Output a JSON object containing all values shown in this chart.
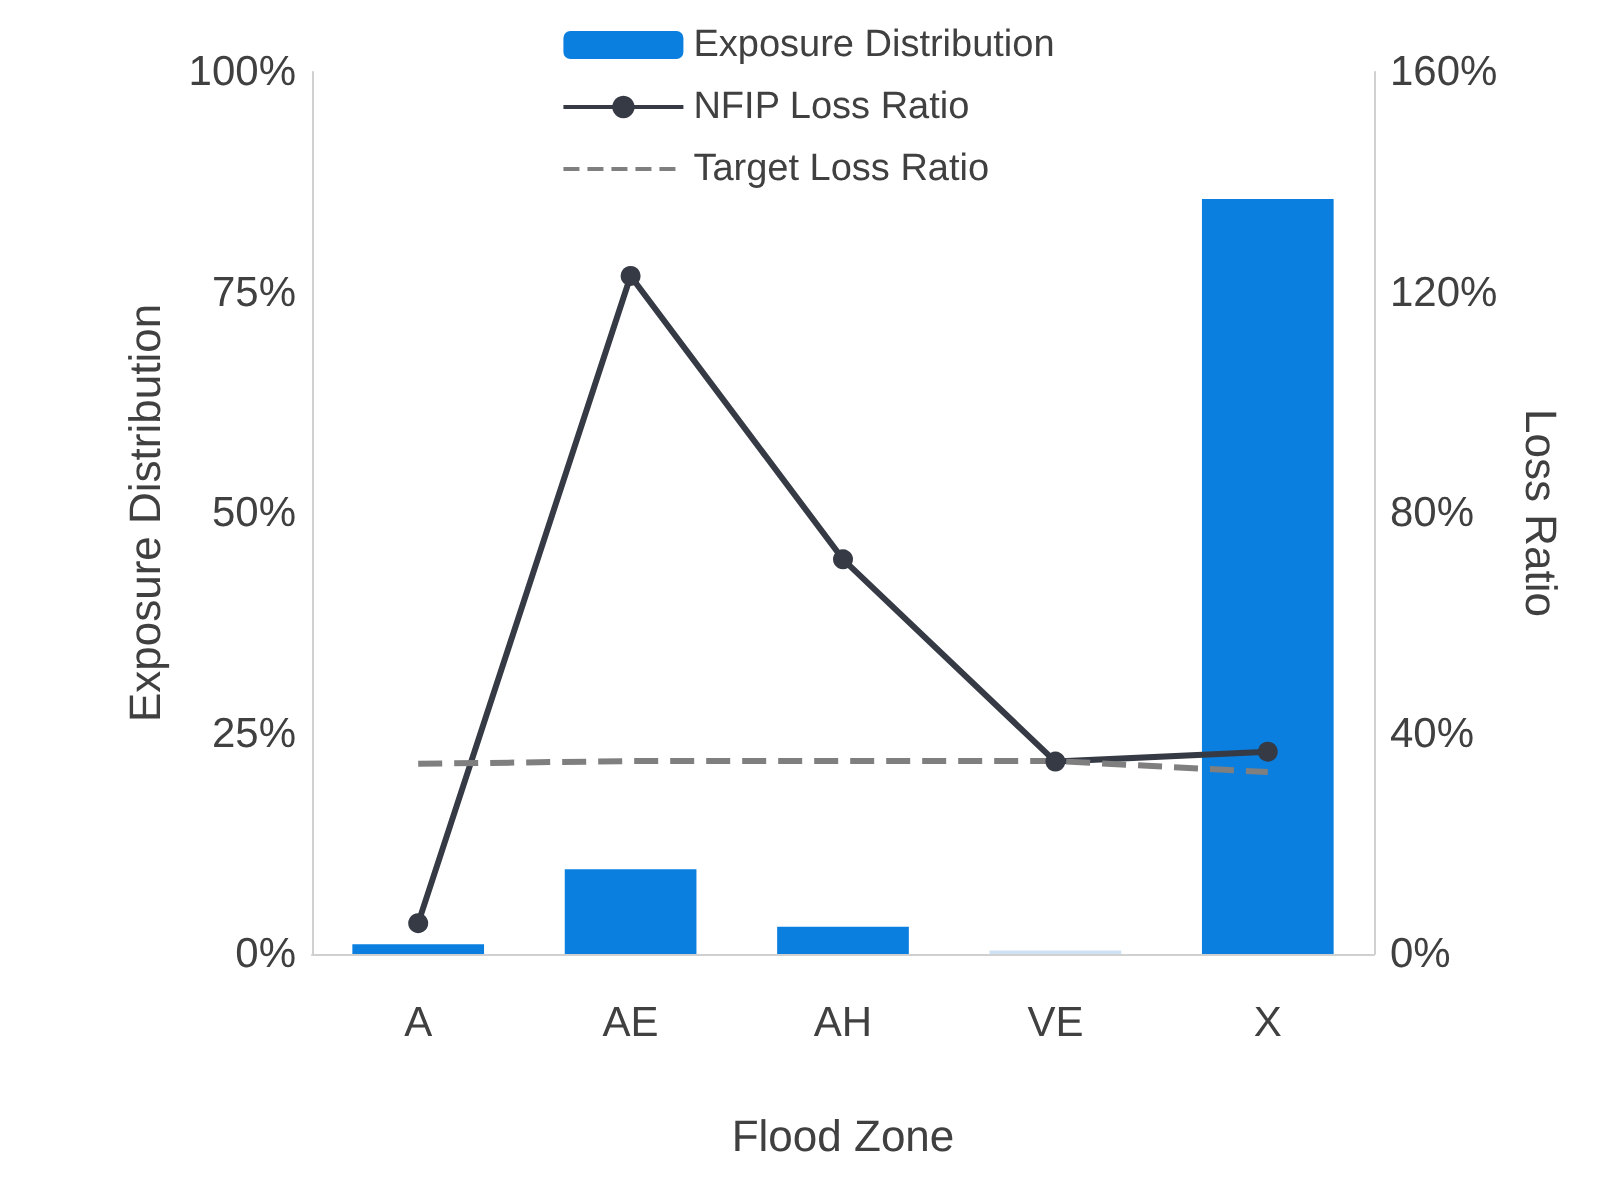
{
  "chart_data": {
    "type": "bar",
    "xlabel": "Flood Zone",
    "ylabel": "Exposure Distribution",
    "y2label": "Loss Ratio",
    "categories": [
      "A",
      "AE",
      "AH",
      "VE",
      "X"
    ],
    "series": [
      {
        "name": "Exposure Distribution",
        "color": "#0a7fe0",
        "colors": [
          "#0a7fe0",
          "#0a7fe0",
          "#0a7fe0",
          "#cfe2f3",
          "#0a7fe0"
        ],
        "values": [
          1.1,
          9.6,
          3.1,
          0.4,
          85.6
        ]
      },
      {
        "name": "NFIP Loss Ratio",
        "type": "line",
        "axis": "y2",
        "color": "#353a45",
        "marker": "circle",
        "line_style": "solid",
        "values": [
          5.6,
          123,
          71.6,
          34.9,
          36.7
        ]
      },
      {
        "name": "Target Loss Ratio",
        "type": "line",
        "axis": "y2",
        "color": "#7f7f7f",
        "marker": "none",
        "line_style": "dashed",
        "values": [
          34.5,
          35,
          35,
          35,
          33
        ]
      }
    ],
    "ylim": [
      0,
      100
    ],
    "yticks": [
      {
        "value": 0,
        "label": "0%"
      },
      {
        "value": 25,
        "label": "25%"
      },
      {
        "value": 50,
        "label": "50%"
      },
      {
        "value": 75,
        "label": "75%"
      },
      {
        "value": 100,
        "label": "100%"
      }
    ],
    "y2lim": [
      0,
      160
    ],
    "y2ticks": [
      {
        "value": 0,
        "label": "0%"
      },
      {
        "value": 40,
        "label": "40%"
      },
      {
        "value": 80,
        "label": "80%"
      },
      {
        "value": 120,
        "label": "120%"
      },
      {
        "value": 160,
        "label": "160%"
      }
    ],
    "grid": false,
    "legend": "top"
  }
}
